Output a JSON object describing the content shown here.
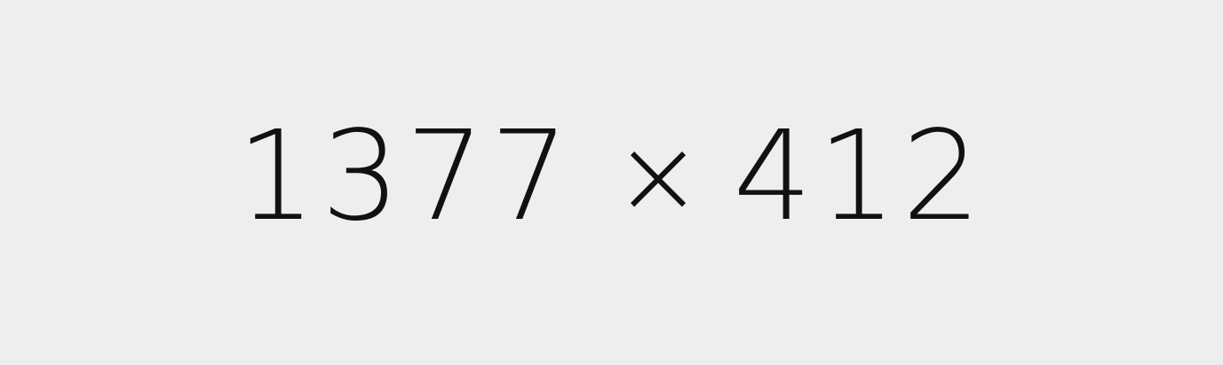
{
  "placeholder": {
    "width_text": "1377",
    "separator": "×",
    "height_text": "412",
    "background_color": "#eeeeee",
    "text_color": "#111111"
  }
}
